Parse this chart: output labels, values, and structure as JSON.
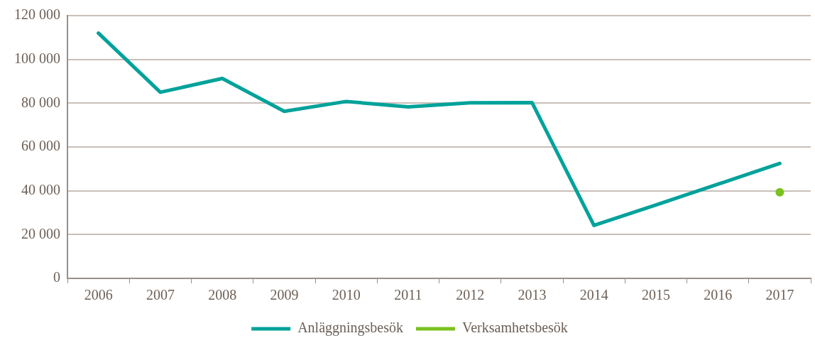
{
  "chart_data": {
    "type": "line",
    "categories": [
      "2006",
      "2007",
      "2008",
      "2009",
      "2010",
      "2011",
      "2012",
      "2013",
      "2014",
      "2015",
      "2016",
      "2017"
    ],
    "series": [
      {
        "name": "Anläggningsbesök",
        "color": "#00a29a",
        "marker": "none",
        "values": [
          112000,
          85000,
          91300,
          76300,
          80800,
          78300,
          80200,
          80300,
          24200,
          33500,
          43000,
          52500
        ]
      },
      {
        "name": "Verksamhetsbesök",
        "color": "#7ac11e",
        "type": "scatter",
        "marker": "circle",
        "values": [
          null,
          null,
          null,
          null,
          null,
          null,
          null,
          null,
          null,
          null,
          null,
          39300
        ]
      }
    ],
    "ylim": [
      0,
      120000
    ],
    "yticks": [
      0,
      20000,
      40000,
      60000,
      80000,
      100000,
      120000
    ],
    "grid": "y",
    "legend": "bottom"
  }
}
